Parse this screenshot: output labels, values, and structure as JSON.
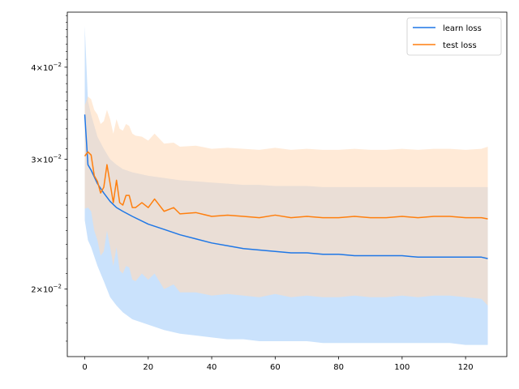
{
  "chart_data": {
    "type": "line",
    "title": "",
    "xlabel": "",
    "ylabel": "",
    "xlim": [
      -5.5,
      133
    ],
    "ylim": [
      0.0162,
      0.0475
    ],
    "yscale": "log",
    "grid": false,
    "legend_position": "top-right",
    "x_ticks": [
      0,
      20,
      40,
      60,
      80,
      100,
      120
    ],
    "x_tick_labels": [
      "0",
      "20",
      "40",
      "60",
      "80",
      "100",
      "120"
    ],
    "y_ticks": [
      0.02,
      0.03,
      0.04
    ],
    "y_tick_labels": [
      {
        "mantissa": "2",
        "times": "×",
        "base": "10",
        "exp": "−2"
      },
      {
        "mantissa": "3",
        "times": "×",
        "base": "10",
        "exp": "−2"
      },
      {
        "mantissa": "4",
        "times": "×",
        "base": "10",
        "exp": "−2"
      }
    ],
    "series": [
      {
        "name": "learn loss",
        "color": "#1f77e6",
        "band_color": "#b8d8fb",
        "x": [
          0,
          1,
          2,
          4,
          6,
          8,
          10,
          12,
          15,
          20,
          25,
          30,
          35,
          40,
          45,
          50,
          55,
          60,
          65,
          70,
          75,
          80,
          85,
          90,
          95,
          100,
          105,
          110,
          115,
          120,
          125,
          127
        ],
        "values": [
          0.0345,
          0.0295,
          0.029,
          0.0278,
          0.027,
          0.0263,
          0.0258,
          0.0255,
          0.0251,
          0.0245,
          0.0241,
          0.0237,
          0.0234,
          0.0231,
          0.0229,
          0.0227,
          0.0226,
          0.0225,
          0.0224,
          0.0224,
          0.0223,
          0.0223,
          0.0222,
          0.0222,
          0.0222,
          0.0222,
          0.0221,
          0.0221,
          0.0221,
          0.0221,
          0.0221,
          0.022
        ],
        "upper": [
          0.0455,
          0.036,
          0.0345,
          0.0322,
          0.031,
          0.03,
          0.0295,
          0.0291,
          0.0288,
          0.0285,
          0.0283,
          0.0281,
          0.028,
          0.0279,
          0.0278,
          0.0277,
          0.0277,
          0.0276,
          0.0276,
          0.0276,
          0.0275,
          0.0275,
          0.0275,
          0.0275,
          0.0275,
          0.0275,
          0.0275,
          0.0275,
          0.0275,
          0.0275,
          0.0275,
          0.0275
        ],
        "lower": [
          0.0248,
          0.0233,
          0.0228,
          0.0215,
          0.0205,
          0.0195,
          0.019,
          0.0186,
          0.0182,
          0.0179,
          0.0176,
          0.0174,
          0.0173,
          0.0172,
          0.0171,
          0.0171,
          0.017,
          0.017,
          0.017,
          0.017,
          0.0169,
          0.0169,
          0.0169,
          0.0169,
          0.0169,
          0.0169,
          0.0169,
          0.0169,
          0.0169,
          0.0168,
          0.0168,
          0.0168
        ]
      },
      {
        "name": "test loss",
        "color": "#ff7f0e",
        "band_color": "#ffdcbc",
        "x": [
          0,
          1,
          2,
          3,
          4,
          5,
          6,
          7,
          8,
          9,
          10,
          11,
          12,
          13,
          14,
          15,
          16,
          18,
          20,
          22,
          25,
          28,
          30,
          35,
          40,
          45,
          50,
          55,
          60,
          65,
          70,
          75,
          80,
          85,
          90,
          95,
          100,
          105,
          110,
          115,
          120,
          125,
          127
        ],
        "values": [
          0.0303,
          0.0307,
          0.0304,
          0.0285,
          0.028,
          0.027,
          0.0275,
          0.0295,
          0.0278,
          0.0262,
          0.0281,
          0.0262,
          0.026,
          0.0268,
          0.0268,
          0.0258,
          0.0258,
          0.0262,
          0.0258,
          0.0265,
          0.0255,
          0.0258,
          0.0253,
          0.0254,
          0.0251,
          0.0252,
          0.0251,
          0.025,
          0.0252,
          0.025,
          0.0251,
          0.025,
          0.025,
          0.0251,
          0.025,
          0.025,
          0.0251,
          0.025,
          0.0251,
          0.0251,
          0.025,
          0.025,
          0.0249
        ],
        "upper": [
          0.0355,
          0.0365,
          0.0362,
          0.035,
          0.0345,
          0.0335,
          0.0338,
          0.035,
          0.034,
          0.0325,
          0.034,
          0.033,
          0.0328,
          0.0335,
          0.0333,
          0.0325,
          0.0323,
          0.0322,
          0.0318,
          0.0325,
          0.0315,
          0.0316,
          0.0312,
          0.0313,
          0.031,
          0.0311,
          0.031,
          0.0309,
          0.0311,
          0.0309,
          0.031,
          0.0309,
          0.0309,
          0.031,
          0.0309,
          0.0309,
          0.031,
          0.0309,
          0.031,
          0.031,
          0.0309,
          0.031,
          0.0312
        ],
        "lower": [
          0.0257,
          0.0258,
          0.0255,
          0.024,
          0.0233,
          0.0222,
          0.0225,
          0.024,
          0.0228,
          0.0215,
          0.0228,
          0.0212,
          0.021,
          0.0215,
          0.0214,
          0.0206,
          0.0205,
          0.021,
          0.0206,
          0.021,
          0.02,
          0.0203,
          0.0198,
          0.0198,
          0.0196,
          0.0197,
          0.0196,
          0.0195,
          0.0197,
          0.0195,
          0.0196,
          0.0195,
          0.0195,
          0.0196,
          0.0195,
          0.0195,
          0.0196,
          0.0195,
          0.0196,
          0.0196,
          0.0195,
          0.0194,
          0.019
        ]
      }
    ]
  }
}
